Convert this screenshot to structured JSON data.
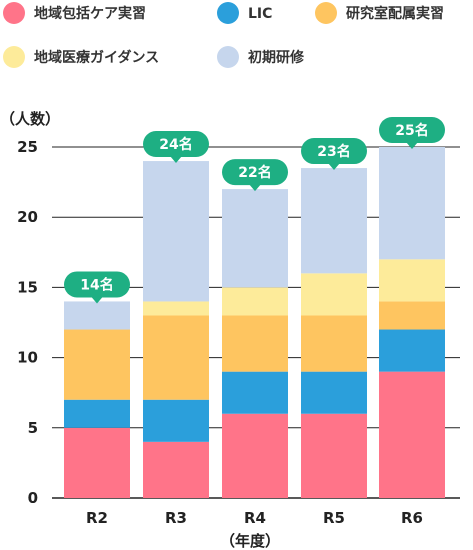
{
  "chart_data": {
    "type": "bar",
    "stacked": true,
    "categories": [
      "R2",
      "R3",
      "R4",
      "R5",
      "R6"
    ],
    "series": [
      {
        "name": "地域包括ケア実習",
        "color": "#ff7489",
        "values": [
          5,
          4,
          6,
          6,
          9
        ]
      },
      {
        "name": "LIC",
        "color": "#2b9fdb",
        "values": [
          2,
          3,
          3,
          3,
          3
        ]
      },
      {
        "name": "研究室配属実習",
        "color": "#fec560",
        "values": [
          5,
          6,
          4,
          4,
          2
        ]
      },
      {
        "name": "地域医療ガイダンス",
        "color": "#fdeb9a",
        "values": [
          0,
          1,
          2,
          3,
          3
        ]
      },
      {
        "name": "初期研修",
        "color": "#c6d6ed",
        "values": [
          2,
          10,
          7,
          7.5,
          8
        ]
      }
    ],
    "totals": [
      "14名",
      "24名",
      "22名",
      "23名",
      "25名"
    ],
    "total_badge_color": "#1eaf83",
    "ylabel": "（人数）",
    "xlabel": "（年度）",
    "ylim": [
      0,
      25
    ],
    "yticks": [
      0,
      5,
      10,
      15,
      20,
      25
    ],
    "grid": true,
    "legend_position": "top"
  }
}
